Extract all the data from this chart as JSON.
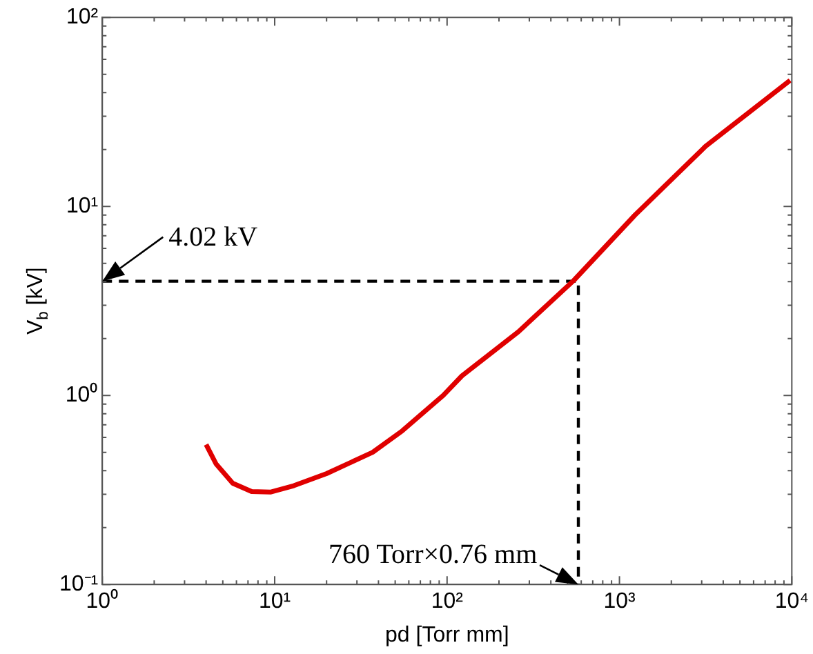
{
  "chart_data": {
    "type": "line",
    "xlabel": "pd [Torr mm]",
    "ylabel": "V$_{b}$ [kV]",
    "log": "xy",
    "xlim": [
      1,
      10000
    ],
    "ylim": [
      0.1,
      100
    ],
    "xticks": [
      {
        "value": 1,
        "label": "10⁰"
      },
      {
        "value": 2,
        "label": null
      },
      {
        "value": 3,
        "label": null
      },
      {
        "value": 4,
        "label": null
      },
      {
        "value": 5,
        "label": null
      },
      {
        "value": 6,
        "label": null
      },
      {
        "value": 7,
        "label": null
      },
      {
        "value": 8,
        "label": null
      },
      {
        "value": 9,
        "label": null
      },
      {
        "value": 10,
        "label": "10¹"
      },
      {
        "value": 20,
        "label": null
      },
      {
        "value": 30,
        "label": null
      },
      {
        "value": 40,
        "label": null
      },
      {
        "value": 50,
        "label": null
      },
      {
        "value": 60,
        "label": null
      },
      {
        "value": 70,
        "label": null
      },
      {
        "value": 80,
        "label": null
      },
      {
        "value": 90,
        "label": null
      },
      {
        "value": 100,
        "label": "10²"
      },
      {
        "value": 200,
        "label": null
      },
      {
        "value": 300,
        "label": null
      },
      {
        "value": 400,
        "label": null
      },
      {
        "value": 500,
        "label": null
      },
      {
        "value": 600,
        "label": null
      },
      {
        "value": 700,
        "label": null
      },
      {
        "value": 800,
        "label": null
      },
      {
        "value": 900,
        "label": null
      },
      {
        "value": 1000,
        "label": "10³"
      },
      {
        "value": 2000,
        "label": null
      },
      {
        "value": 3000,
        "label": null
      },
      {
        "value": 4000,
        "label": null
      },
      {
        "value": 5000,
        "label": null
      },
      {
        "value": 6000,
        "label": null
      },
      {
        "value": 7000,
        "label": null
      },
      {
        "value": 8000,
        "label": null
      },
      {
        "value": 9000,
        "label": null
      },
      {
        "value": 10000,
        "label": "10⁴"
      }
    ],
    "yticks": [
      {
        "value": 0.1,
        "label": "10⁻¹"
      },
      {
        "value": 0.2,
        "label": null
      },
      {
        "value": 0.3,
        "label": null
      },
      {
        "value": 0.4,
        "label": null
      },
      {
        "value": 0.5,
        "label": null
      },
      {
        "value": 0.6,
        "label": null
      },
      {
        "value": 0.7,
        "label": null
      },
      {
        "value": 0.8,
        "label": null
      },
      {
        "value": 0.9,
        "label": null
      },
      {
        "value": 1,
        "label": "10⁰"
      },
      {
        "value": 2,
        "label": null
      },
      {
        "value": 3,
        "label": null
      },
      {
        "value": 4,
        "label": null
      },
      {
        "value": 5,
        "label": null
      },
      {
        "value": 6,
        "label": null
      },
      {
        "value": 7,
        "label": null
      },
      {
        "value": 8,
        "label": null
      },
      {
        "value": 9,
        "label": null
      },
      {
        "value": 10,
        "label": "10¹"
      },
      {
        "value": 20,
        "label": null
      },
      {
        "value": 30,
        "label": null
      },
      {
        "value": 40,
        "label": null
      },
      {
        "value": 50,
        "label": null
      },
      {
        "value": 60,
        "label": null
      },
      {
        "value": 70,
        "label": null
      },
      {
        "value": 80,
        "label": null
      },
      {
        "value": 90,
        "label": null
      },
      {
        "value": 100,
        "label": "10²"
      }
    ],
    "grid": false,
    "legend": false,
    "marker": "none",
    "series": [
      {
        "color": "#e00000",
        "line_style": "solid",
        "x": [
          4.0,
          4.57,
          5.71,
          7.35,
          9.43,
          12.9,
          20,
          37,
          55,
          95,
          122,
          259,
          542,
          1230,
          3160,
          9770
        ],
        "values": [
          0.55,
          0.434,
          0.343,
          0.31,
          0.308,
          0.333,
          0.386,
          0.5,
          0.65,
          1.0,
          1.27,
          2.17,
          4.05,
          9.0,
          20.8,
          46.4
        ]
      },
      {
        "color": "#000000",
        "line_style": "dashed",
        "x": [
          1,
          577.6,
          577.6
        ],
        "values": [
          4.02,
          4.02,
          0.1
        ]
      }
    ],
    "annotations": [
      {
        "text": "4.02 kV",
        "x": 1,
        "y": 4.02
      },
      {
        "text": "760 Torr×0.76 mm",
        "x": 577.6,
        "y": 0.1
      }
    ]
  }
}
